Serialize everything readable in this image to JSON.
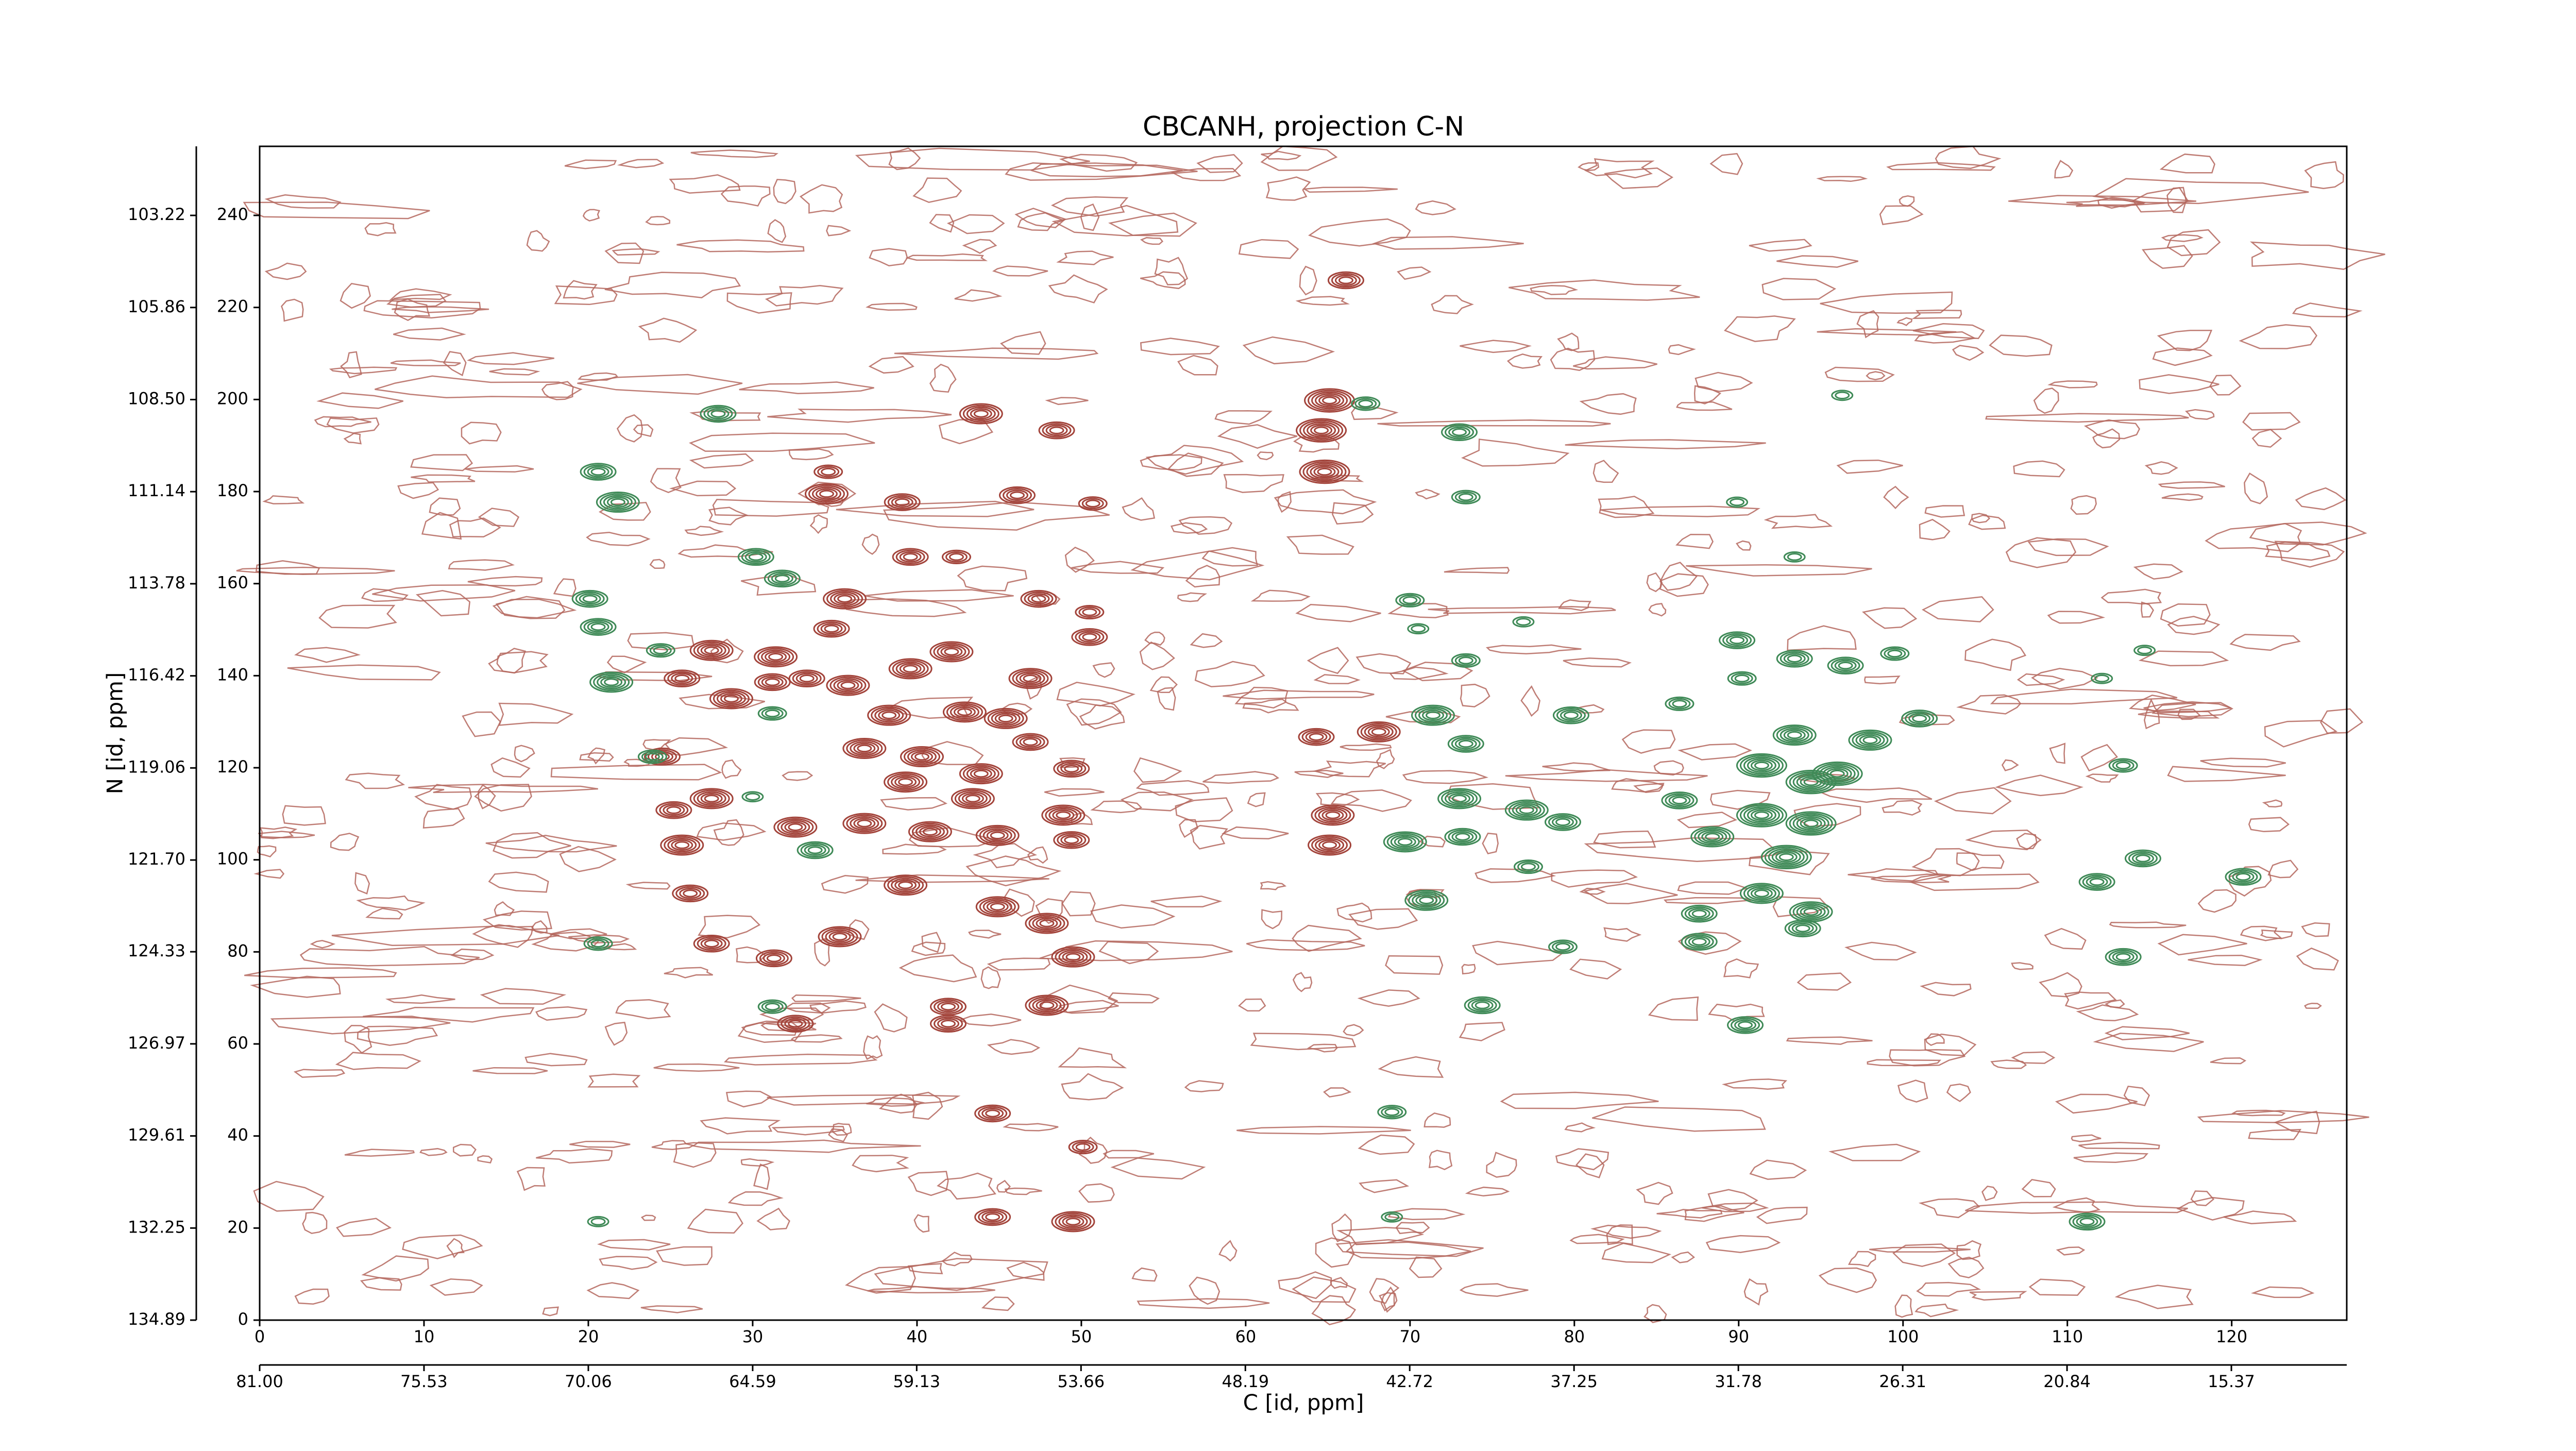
{
  "chart_data": {
    "type": "contour",
    "title": "CBCANH, projection C-N",
    "xlabel": "C [id, ppm]",
    "ylabel": "N [id, ppm]",
    "xlim": [
      0,
      127
    ],
    "ylim": [
      0,
      255
    ],
    "xticks": [
      0,
      10,
      20,
      30,
      40,
      50,
      60,
      70,
      80,
      90,
      100,
      110,
      120
    ],
    "yticks": [
      0,
      20,
      40,
      60,
      80,
      100,
      120,
      140,
      160,
      180,
      200,
      220,
      240
    ],
    "x2lim": [
      81,
      11.53
    ],
    "x2ticks": [
      {
        "value": 81,
        "label": "81.00"
      },
      75.53,
      70.06,
      64.59,
      59.13,
      53.66,
      48.19,
      42.72,
      37.25,
      31.78,
      26.31,
      20.84,
      15.37
    ],
    "y2lim": [
      134.89,
      101.24
    ],
    "y2ticks": [
      134.89,
      132.25,
      129.61,
      126.97,
      124.33,
      {
        "value": 121.7,
        "label": "121.70"
      },
      119.06,
      116.42,
      113.78,
      111.14,
      {
        "value": 108.5,
        "label": "108.50"
      },
      105.86,
      103.22
    ],
    "series": [
      {
        "color": "#a3443b",
        "x": [
          66.1,
          43.9,
          48.5,
          65.1,
          64.6,
          64.8,
          34.5,
          39.1,
          46.1,
          50.7,
          34.6,
          39.6,
          42.4,
          35.6,
          34.8,
          47.4,
          50.5,
          50.5,
          27.5,
          31.4,
          31.2,
          25.7,
          28.7,
          35.8,
          42.1,
          46.9,
          39.6,
          42.9,
          38.3,
          45.4,
          46.9,
          64.3,
          68.1,
          36.8,
          40.3,
          43.9,
          49.4,
          24.5,
          27.5,
          25.2,
          32.6,
          36.8,
          40.8,
          44.9,
          48.9,
          49.4,
          65.3,
          65.1,
          25.7,
          39.3,
          26.2,
          44.9,
          47.9,
          35.3,
          27.5,
          49.5,
          31.3,
          41.9,
          41.9,
          47.9,
          32.6,
          44.6,
          50.1,
          44.6,
          49.5,
          33.3,
          39.3,
          43.4
        ],
        "y": [
          225.9,
          196.9,
          193.3,
          199.8,
          193.3,
          184.3,
          179.5,
          177.7,
          179.2,
          177.4,
          184.3,
          165.8,
          165.8,
          156.7,
          150.2,
          156.7,
          148.4,
          153.8,
          145.5,
          144.1,
          138.6,
          139.4,
          135,
          137.9,
          145.2,
          139.4,
          141.5,
          132.1,
          131.4,
          130.7,
          125.6,
          126.7,
          127.8,
          124.2,
          122.4,
          118.7,
          119.8,
          122.4,
          113.3,
          110.8,
          107.1,
          107.9,
          106.1,
          105.3,
          109.7,
          104.3,
          109.7,
          103.2,
          103.2,
          94.5,
          92.7,
          89.8,
          86.2,
          83.3,
          81.8,
          78.9,
          78.6,
          68.1,
          64.4,
          68.4,
          64.4,
          44.9,
          37.6,
          22.4,
          21.4,
          139.4,
          116.9,
          113.3
        ],
        "levels": [
          4,
          5,
          4,
          6,
          6,
          6,
          5,
          4,
          4,
          3,
          3,
          4,
          3,
          5,
          4,
          4,
          4,
          3,
          5,
          5,
          4,
          4,
          5,
          5,
          5,
          5,
          5,
          5,
          5,
          5,
          4,
          4,
          5,
          5,
          5,
          5,
          4,
          4,
          5,
          4,
          5,
          5,
          5,
          5,
          5,
          4,
          5,
          5,
          5,
          5,
          4,
          5,
          5,
          5,
          4,
          5,
          4,
          4,
          4,
          5,
          4,
          4,
          3,
          4,
          5,
          4,
          5,
          5
        ]
      },
      {
        "color": "#3f8a57",
        "x": [
          27.9,
          20.6,
          21.8,
          30.2,
          31.8,
          20.1,
          20.6,
          24.4,
          21.4,
          31.2,
          23.9,
          30.0,
          33.8,
          73.0,
          67.3,
          73.4,
          70.0,
          70.5,
          73.4,
          76.9,
          71.4,
          73.4,
          79.8,
          73.0,
          69.7,
          73.2,
          77.1,
          79.3,
          77.2,
          71.0,
          79.3,
          74.4,
          68.9,
          68.9,
          89.9,
          90.2,
          93.4,
          96.5,
          99.5,
          86.4,
          93.4,
          98.0,
          101.0,
          91.4,
          94.4,
          96.0,
          86.4,
          91.4,
          94.4,
          88.4,
          92.9,
          91.4,
          94.4,
          87.6,
          93.9,
          87.6,
          90.4,
          96.3,
          93.4,
          89.9,
          114.7,
          112.1,
          113.4,
          114.6,
          111.8,
          120.7,
          113.4,
          111.2,
          20.6,
          31.2,
          20.6
        ],
        "y": [
          196.9,
          184.3,
          177.7,
          165.8,
          161.1,
          156.7,
          150.6,
          145.5,
          138.6,
          131.8,
          122.4,
          113.7,
          102.1,
          192.9,
          199.1,
          178.8,
          156.4,
          150.2,
          143.3,
          151.7,
          131.4,
          125.2,
          131.4,
          113.3,
          103.9,
          105.0,
          110.8,
          108.2,
          98.5,
          91.2,
          81.1,
          68.4,
          45.2,
          22.4,
          147.7,
          139.4,
          143.7,
          142.2,
          144.8,
          133.9,
          127.1,
          126.0,
          130.7,
          120.5,
          116.9,
          118.7,
          112.9,
          109.7,
          107.9,
          105.0,
          100.6,
          92.7,
          88.7,
          88.3,
          85.1,
          82.2,
          64.1,
          200.9,
          165.8,
          177.7,
          145.5,
          139.4,
          120.5,
          100.3,
          95.2,
          96.3,
          78.9,
          21.4,
          81.8,
          68.1,
          21.4
        ],
        "levels": [
          4,
          4,
          5,
          4,
          4,
          4,
          4,
          3,
          5,
          3,
          3,
          2,
          4,
          4,
          3,
          3,
          3,
          2,
          3,
          2,
          5,
          4,
          4,
          5,
          5,
          4,
          5,
          4,
          3,
          5,
          3,
          4,
          3,
          2,
          4,
          3,
          4,
          4,
          3,
          3,
          5,
          5,
          4,
          6,
          6,
          6,
          4,
          6,
          6,
          5,
          6,
          5,
          5,
          4,
          4,
          4,
          4,
          2,
          2,
          2,
          2,
          2,
          3,
          4,
          4,
          4,
          4,
          4,
          3,
          3,
          2
        ]
      }
    ]
  }
}
